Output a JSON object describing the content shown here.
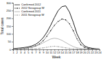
{
  "chart_data": {
    "type": "line",
    "x": [
      1,
      2,
      3,
      4,
      5,
      6,
      7,
      8,
      9,
      10,
      11,
      12,
      13,
      14,
      15,
      16,
      17,
      18,
      19,
      20,
      21,
      22,
      23,
      24
    ],
    "series": [
      {
        "name": "Confirmed 2012",
        "color": "#000000",
        "line_style": "solid",
        "values": [
          5,
          7,
          9,
          12,
          16,
          22,
          32,
          50,
          75,
          110,
          155,
          205,
          250,
          275,
          280,
          240,
          175,
          100,
          50,
          22,
          12,
          7,
          4,
          3
        ]
      },
      {
        "name": "2012 Serogroup W",
        "color": "#000000",
        "line_style": "dashed",
        "marker": "point",
        "values": [
          2,
          3,
          4,
          6,
          9,
          14,
          22,
          35,
          55,
          85,
          120,
          155,
          180,
          195,
          190,
          165,
          120,
          68,
          30,
          13,
          6,
          4,
          2,
          1
        ]
      },
      {
        "name": "Confirmed 2011",
        "color": "#999999",
        "line_style": "solid",
        "values": [
          3,
          5,
          6,
          8,
          11,
          15,
          21,
          30,
          42,
          55,
          67,
          72,
          68,
          58,
          44,
          30,
          18,
          10,
          6,
          4,
          3,
          2,
          1,
          1
        ]
      },
      {
        "name": "2011 Serogroup W",
        "color": "#999999",
        "line_style": "dashed",
        "marker": "point",
        "values": [
          1,
          1,
          1,
          2,
          2,
          3,
          5,
          7,
          10,
          14,
          18,
          20,
          18,
          14,
          10,
          7,
          4,
          3,
          2,
          1,
          1,
          1,
          1,
          1
        ]
      }
    ],
    "xlabel": "Week",
    "ylabel": "Total cases",
    "xlim": [
      1,
      24
    ],
    "xticks": [
      1,
      2,
      3,
      4,
      5,
      6,
      7,
      8,
      9,
      10,
      11,
      12,
      13,
      14,
      15,
      16,
      17,
      18,
      19,
      20,
      21,
      22,
      23,
      24
    ],
    "ylim": [
      0,
      300
    ],
    "yticks": [
      0,
      50,
      100,
      150,
      200,
      250,
      300
    ],
    "grid": false,
    "legend": "top-left"
  }
}
